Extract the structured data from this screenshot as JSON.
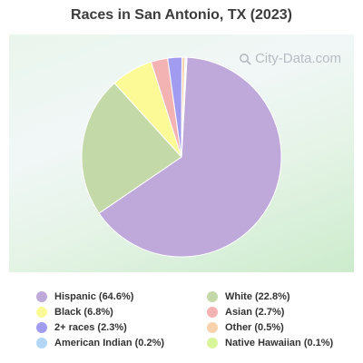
{
  "chart_data": {
    "type": "pie",
    "title": "Races in San Antonio, TX (2023)",
    "watermark": "City-Data.com",
    "legend_position": "bottom",
    "slices": [
      {
        "label": "Hispanic",
        "legend_text": "Hispanic (64.6%)",
        "value": 64.6,
        "color": "#bfa9db"
      },
      {
        "label": "White",
        "legend_text": "White (22.8%)",
        "value": 22.8,
        "color": "#c4d9a8"
      },
      {
        "label": "Black",
        "legend_text": "Black (6.8%)",
        "value": 6.8,
        "color": "#fbfa96"
      },
      {
        "label": "Asian",
        "legend_text": "Asian (2.7%)",
        "value": 2.7,
        "color": "#f4b3b3"
      },
      {
        "label": "2+ races",
        "legend_text": "2+ races (2.3%)",
        "value": 2.3,
        "color": "#a19cf0"
      },
      {
        "label": "Other",
        "legend_text": "Other (0.5%)",
        "value": 0.5,
        "color": "#f8d2ad"
      },
      {
        "label": "American Indian",
        "legend_text": "American Indian (0.2%)",
        "value": 0.2,
        "color": "#b3d6f7"
      },
      {
        "label": "Native Hawaiian",
        "legend_text": "Native Hawaiian (0.1%)",
        "value": 0.1,
        "color": "#d8f59a"
      }
    ]
  },
  "colors": {
    "title_text": "#3c3c3c",
    "legend_text": "#333333",
    "slice_border": "#ffffff"
  }
}
